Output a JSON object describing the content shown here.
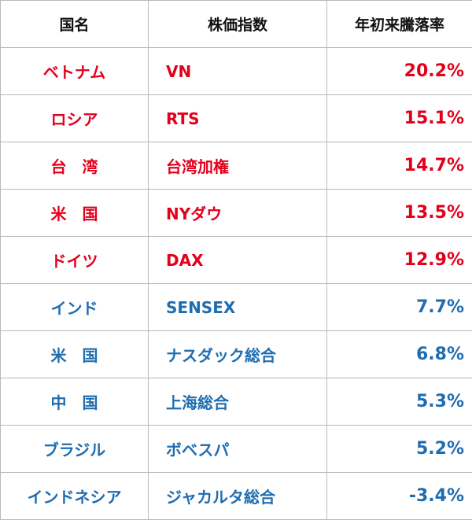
{
  "table": {
    "header": [
      "国名",
      "株価指数",
      "年初来騰落率"
    ],
    "rows": [
      {
        "country": "ベトナム",
        "index": "VN",
        "change": "20.2%",
        "color": "#e3001b"
      },
      {
        "country": "ロシア",
        "index": "RTS",
        "change": "15.1%",
        "color": "#e3001b"
      },
      {
        "country": "台　湾",
        "index": "台湾加権",
        "change": "14.7%",
        "color": "#e3001b"
      },
      {
        "country": "米　国",
        "index": "NYダウ",
        "change": "13.5%",
        "color": "#e3001b"
      },
      {
        "country": "ドイツ",
        "index": "DAX",
        "change": "12.9%",
        "color": "#e3001b"
      },
      {
        "country": "インド",
        "index": "SENSEX",
        "change": "7.7%",
        "color": "#1f6db0"
      },
      {
        "country": "米　国",
        "index": "ナスダック総合",
        "change": "6.8%",
        "color": "#1f6db0"
      },
      {
        "country": "中　国",
        "index": "上海総合",
        "change": "5.3%",
        "color": "#1f6db0"
      },
      {
        "country": "ブラジル",
        "index": "ボベスパ",
        "change": "5.2%",
        "color": "#1f6db0"
      },
      {
        "country": "インドネシア",
        "index": "ジャカルタ総合",
        "change": "-3.4%",
        "color": "#1f6db0"
      }
    ]
  }
}
